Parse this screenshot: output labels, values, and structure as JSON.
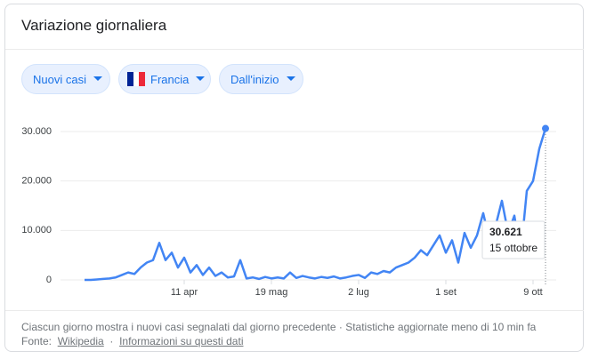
{
  "header": {
    "title": "Variazione giornaliera"
  },
  "filters": [
    "Nuovi casi",
    "Francia",
    "Dall'inizio"
  ],
  "chart_data": {
    "type": "line",
    "color": "#4285f4",
    "grid": true,
    "categories": [
      null,
      null,
      null,
      null,
      null,
      null,
      null,
      null,
      null,
      null,
      null,
      null,
      null,
      null,
      null,
      null,
      "11 apr",
      null,
      null,
      null,
      null,
      null,
      null,
      null,
      null,
      null,
      null,
      null,
      null,
      null,
      "19 mag",
      null,
      null,
      null,
      null,
      null,
      null,
      null,
      null,
      null,
      null,
      null,
      null,
      null,
      "2 lug",
      null,
      null,
      null,
      null,
      null,
      null,
      null,
      null,
      null,
      null,
      null,
      null,
      null,
      "1 set",
      null,
      null,
      null,
      null,
      null,
      null,
      null,
      null,
      null,
      null,
      null,
      null,
      null,
      "9 ott",
      null,
      null
    ],
    "values": [
      0,
      0,
      100,
      200,
      300,
      500,
      1000,
      1500,
      1200,
      2500,
      3500,
      4000,
      7500,
      4000,
      5500,
      2500,
      4500,
      1500,
      3000,
      1000,
      2500,
      800,
      1500,
      500,
      700,
      4000,
      300,
      500,
      200,
      600,
      300,
      500,
      300,
      1500,
      400,
      800,
      500,
      300,
      600,
      400,
      700,
      300,
      500,
      800,
      1000,
      400,
      1500,
      1200,
      1800,
      1500,
      2500,
      3000,
      3500,
      4500,
      6000,
      5000,
      7000,
      9000,
      5500,
      8000,
      3500,
      9500,
      6500,
      9000,
      13500,
      8000,
      11000,
      16000,
      9500,
      13000,
      5000,
      18000,
      20000,
      26500,
      30621
    ],
    "value_labels": [
      null,
      null,
      null,
      null,
      null,
      null,
      null,
      null,
      null,
      null,
      null,
      null,
      null,
      null,
      null,
      null,
      null,
      null,
      null,
      null,
      null,
      null,
      null,
      null,
      null,
      null,
      null,
      null,
      null,
      null,
      null,
      null,
      null,
      null,
      null,
      null,
      null,
      null,
      null,
      null,
      null,
      null,
      null,
      null,
      null,
      null,
      null,
      null,
      null,
      null,
      null,
      null,
      null,
      null,
      null,
      null,
      null,
      null,
      null,
      null,
      null,
      null,
      null,
      null,
      null,
      null,
      null,
      null,
      null,
      null,
      null,
      null,
      null,
      null,
      "30.621"
    ],
    "tooltip_date": "15 ottobre",
    "ylim": [
      0,
      30000
    ],
    "yticks": [
      0,
      {
        "value": 10000,
        "label": "10.000"
      },
      {
        "value": 20000,
        "label": "20.000"
      },
      {
        "value": 30000,
        "label": "30.000"
      }
    ]
  },
  "footer": {
    "note": "Ciascun giorno mostra i nuovi casi segnalati dal giorno precedente · Statistiche aggiornate meno di 10 min fa",
    "source_label": "Fonte:",
    "source_link": "Wikipedia",
    "info_link": "Informazioni su questi dati"
  }
}
